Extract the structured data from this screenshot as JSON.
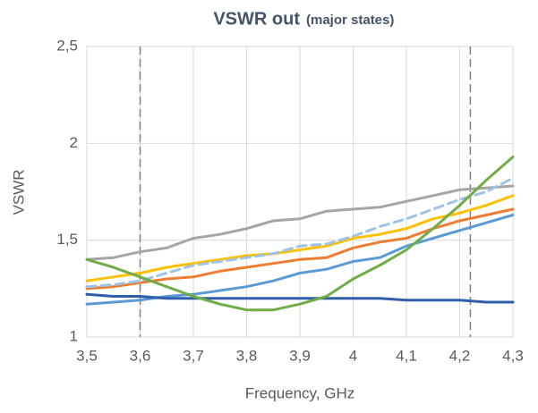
{
  "chart_data": {
    "type": "line",
    "title": "VSWR out",
    "subtitle": "(major states)",
    "xlabel": "Frequency, GHz",
    "ylabel": "VSWR",
    "x": [
      3.5,
      3.55,
      3.6,
      3.65,
      3.7,
      3.75,
      3.8,
      3.85,
      3.9,
      3.95,
      4.0,
      4.05,
      4.1,
      4.15,
      4.2,
      4.25,
      4.3
    ],
    "series": [
      {
        "color": "#a5a5a5",
        "values": [
          1.4,
          1.41,
          1.44,
          1.46,
          1.51,
          1.53,
          1.56,
          1.6,
          1.61,
          1.65,
          1.66,
          1.67,
          1.7,
          1.73,
          1.76,
          1.77,
          1.78
        ]
      },
      {
        "color": "#ffc000",
        "values": [
          1.29,
          1.31,
          1.33,
          1.36,
          1.38,
          1.4,
          1.42,
          1.43,
          1.45,
          1.47,
          1.51,
          1.53,
          1.56,
          1.61,
          1.64,
          1.68,
          1.73
        ]
      },
      {
        "color": "#ed7d31",
        "values": [
          1.25,
          1.26,
          1.28,
          1.3,
          1.31,
          1.34,
          1.36,
          1.38,
          1.4,
          1.41,
          1.46,
          1.49,
          1.51,
          1.56,
          1.6,
          1.63,
          1.66
        ]
      },
      {
        "color": "#9dc3e6",
        "dashed": true,
        "values": [
          1.26,
          1.27,
          1.29,
          1.33,
          1.37,
          1.39,
          1.41,
          1.43,
          1.47,
          1.48,
          1.52,
          1.57,
          1.61,
          1.66,
          1.71,
          1.75,
          1.82
        ]
      },
      {
        "color": "#5b9bd5",
        "values": [
          1.17,
          1.18,
          1.19,
          1.21,
          1.22,
          1.24,
          1.26,
          1.29,
          1.33,
          1.35,
          1.39,
          1.41,
          1.47,
          1.51,
          1.55,
          1.59,
          1.63
        ]
      },
      {
        "color": "#2f5fa8",
        "values": [
          1.22,
          1.21,
          1.21,
          1.2,
          1.2,
          1.2,
          1.2,
          1.2,
          1.2,
          1.2,
          1.2,
          1.2,
          1.19,
          1.19,
          1.19,
          1.18,
          1.18
        ]
      },
      {
        "color": "#70ad47",
        "values": [
          1.4,
          1.36,
          1.31,
          1.26,
          1.21,
          1.17,
          1.14,
          1.14,
          1.17,
          1.21,
          1.3,
          1.37,
          1.45,
          1.56,
          1.68,
          1.81,
          1.93
        ]
      }
    ],
    "vlines": [
      3.6,
      4.22
    ],
    "xlim": [
      3.5,
      4.3
    ],
    "xticks": [
      {
        "value": 3.5,
        "label": "3,5"
      },
      {
        "value": 3.6,
        "label": "3,6"
      },
      {
        "value": 3.7,
        "label": "3,7"
      },
      {
        "value": 3.8,
        "label": "3,8"
      },
      {
        "value": 3.9,
        "label": "3,9"
      },
      {
        "value": 4,
        "label": "4"
      },
      {
        "value": 4.1,
        "label": "4,1"
      },
      {
        "value": 4.2,
        "label": "4,2"
      },
      {
        "value": 4.3,
        "label": "4,3"
      }
    ],
    "ylim": [
      1,
      2.5
    ],
    "yticks": [
      1,
      {
        "value": 1.5,
        "label": "1,5"
      },
      2,
      {
        "value": 2.5,
        "label": "2,5"
      }
    ],
    "grid": true
  }
}
